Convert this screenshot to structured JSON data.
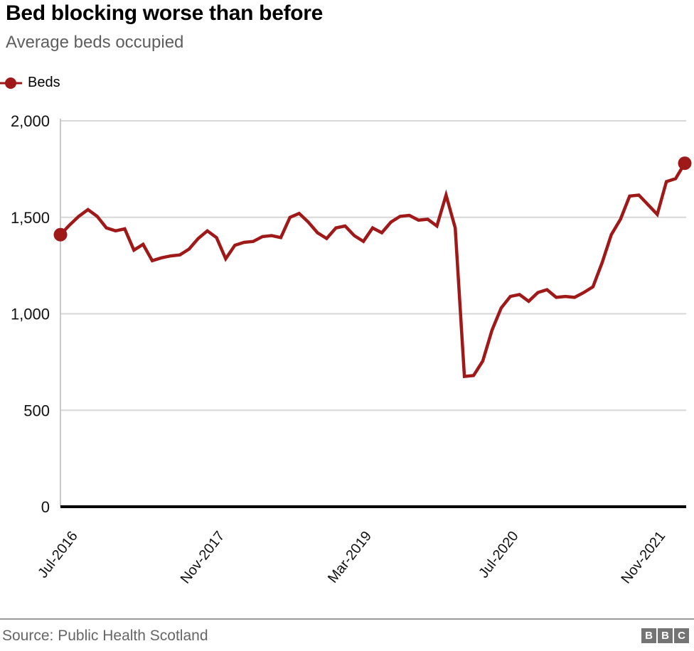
{
  "header": {
    "title": "Bed blocking worse than before",
    "subtitle": "Average beds occupied"
  },
  "legend": {
    "items": [
      {
        "label": "Beds",
        "color": "#a01919"
      }
    ]
  },
  "chart_data": {
    "type": "line",
    "title": "Bed blocking worse than before",
    "subtitle": "Average beds occupied",
    "xlabel": "",
    "ylabel": "",
    "ylim": [
      0,
      2000
    ],
    "grid": "horizontal",
    "legend_position": "top-left",
    "marker_points": [
      "first",
      "last"
    ],
    "yticks": [
      {
        "value": 0,
        "label": "0"
      },
      {
        "value": 500,
        "label": "500"
      },
      {
        "value": 1000,
        "label": "1,000"
      },
      {
        "value": 1500,
        "label": "1,500"
      },
      {
        "value": 2000,
        "label": "2,000"
      }
    ],
    "xticks": [
      {
        "index": 1,
        "label": "Jul-2016"
      },
      {
        "index": 17,
        "label": "Nov-2017"
      },
      {
        "index": 33,
        "label": "Mar-2019"
      },
      {
        "index": 49,
        "label": "Jul-2020"
      },
      {
        "index": 65,
        "label": "Nov-2021"
      }
    ],
    "series": [
      {
        "name": "Beds",
        "color": "#a01919",
        "x": [
          "Jun-2016",
          "Jul-2016",
          "Aug-2016",
          "Sep-2016",
          "Oct-2016",
          "Nov-2016",
          "Dec-2016",
          "Jan-2017",
          "Feb-2017",
          "Mar-2017",
          "Apr-2017",
          "May-2017",
          "Jun-2017",
          "Jul-2017",
          "Aug-2017",
          "Sep-2017",
          "Oct-2017",
          "Nov-2017",
          "Dec-2017",
          "Jan-2018",
          "Feb-2018",
          "Mar-2018",
          "Apr-2018",
          "May-2018",
          "Jun-2018",
          "Jul-2018",
          "Aug-2018",
          "Sep-2018",
          "Oct-2018",
          "Nov-2018",
          "Dec-2018",
          "Jan-2019",
          "Feb-2019",
          "Mar-2019",
          "Apr-2019",
          "May-2019",
          "Jun-2019",
          "Jul-2019",
          "Aug-2019",
          "Sep-2019",
          "Oct-2019",
          "Nov-2019",
          "Dec-2019",
          "Jan-2020",
          "Feb-2020",
          "Mar-2020",
          "Apr-2020",
          "May-2020",
          "Jun-2020",
          "Jul-2020",
          "Aug-2020",
          "Sep-2020",
          "Oct-2020",
          "Nov-2020",
          "Dec-2020",
          "Jan-2021",
          "Feb-2021",
          "Mar-2021",
          "Apr-2021",
          "May-2021",
          "Jun-2021",
          "Jul-2021",
          "Aug-2021",
          "Sep-2021",
          "Oct-2021",
          "Nov-2021",
          "Dec-2021",
          "Jan-2022",
          "Feb-2022"
        ],
        "values": [
          1410,
          1460,
          1505,
          1540,
          1505,
          1445,
          1430,
          1440,
          1330,
          1360,
          1275,
          1290,
          1300,
          1305,
          1335,
          1390,
          1430,
          1395,
          1285,
          1355,
          1370,
          1375,
          1400,
          1405,
          1395,
          1500,
          1520,
          1475,
          1420,
          1390,
          1445,
          1455,
          1405,
          1375,
          1445,
          1420,
          1475,
          1505,
          1510,
          1485,
          1490,
          1455,
          1615,
          1445,
          675,
          680,
          755,
          915,
          1030,
          1090,
          1100,
          1065,
          1110,
          1125,
          1085,
          1090,
          1085,
          1110,
          1140,
          1265,
          1410,
          1490,
          1610,
          1615,
          1565,
          1515,
          1685,
          1700,
          1780
        ]
      }
    ]
  },
  "footer": {
    "source": "Source: Public Health Scotland",
    "logo_letters": [
      "B",
      "B",
      "C"
    ]
  }
}
